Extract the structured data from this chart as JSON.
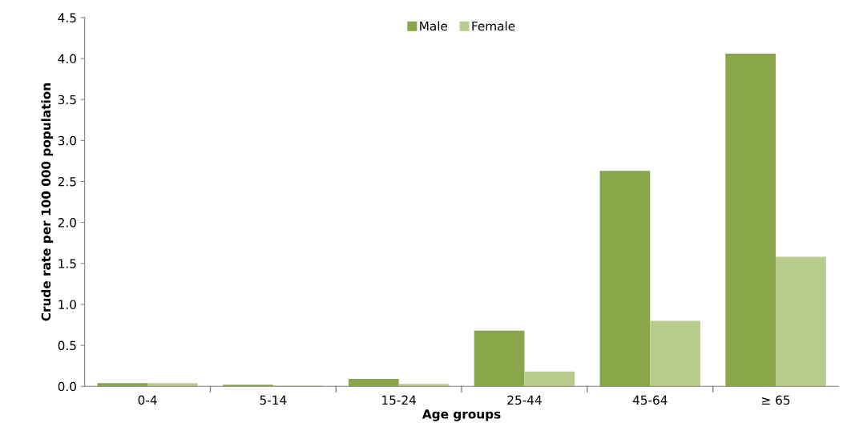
{
  "chart_data": {
    "type": "bar",
    "xlabel": "Age groups",
    "ylabel": "Crude rate per 100 000 population",
    "categories": [
      "0-4",
      "5-14",
      "15-24",
      "25-44",
      "45-64",
      "≥ 65"
    ],
    "series": [
      {
        "name": "Male",
        "color": "#8aa64a",
        "values": [
          0.04,
          0.02,
          0.09,
          0.68,
          2.63,
          4.06
        ]
      },
      {
        "name": "Female",
        "color": "#b9cc8e",
        "values": [
          0.04,
          0.01,
          0.03,
          0.18,
          0.8,
          1.58
        ]
      }
    ],
    "ylim": [
      0,
      4.5
    ],
    "yticks": [
      {
        "value": 0,
        "label": "0.0"
      },
      {
        "value": 0.5,
        "label": "0.5"
      },
      {
        "value": 1,
        "label": "1.0"
      },
      {
        "value": 1.5,
        "label": "1.5"
      },
      {
        "value": 2,
        "label": "2.0"
      },
      {
        "value": 2.5,
        "label": "2.5"
      },
      {
        "value": 3,
        "label": "3.0"
      },
      {
        "value": 3.5,
        "label": "3.5"
      },
      {
        "value": 4,
        "label": "4.0"
      },
      {
        "value": 4.5,
        "label": "4.5"
      }
    ],
    "grid": false,
    "legend": "top"
  }
}
